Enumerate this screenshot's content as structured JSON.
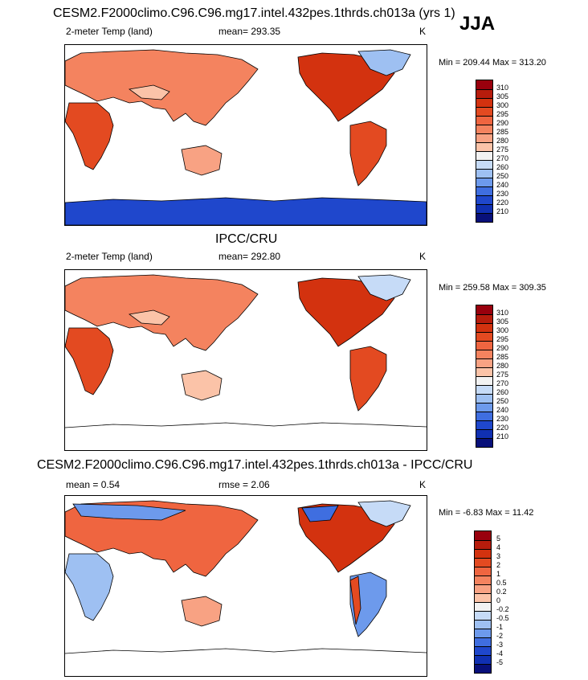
{
  "header": {
    "model_title": "CESM2.F2000climo.C96.C96.mg17.intel.432pes.1thrds.ch013a (yrs 1)",
    "season": "JJA"
  },
  "panel_model": {
    "variable": "2-meter Temp (land)",
    "stat": "mean= 293.35",
    "units": "K",
    "minmax": "Min = 209.44 Max = 313.20"
  },
  "panel_obs": {
    "title": "IPCC/CRU",
    "variable": "2-meter Temp (land)",
    "stat": "mean= 292.80",
    "units": "K",
    "minmax": "Min = 259.58 Max = 309.35"
  },
  "panel_diff": {
    "title": "CESM2.F2000climo.C96.C96.mg17.intel.432pes.1thrds.ch013a - IPCC/CRU",
    "mean": "mean =   0.54",
    "rmse": "rmse =   2.06",
    "units": "K",
    "minmax": "Min =  -6.83 Max =  11.42"
  },
  "colorbar_abs": {
    "labels": [
      "310",
      "305",
      "300",
      "295",
      "290",
      "285",
      "280",
      "275",
      "270",
      "260",
      "250",
      "240",
      "230",
      "220",
      "210"
    ],
    "colors": [
      "#99000d",
      "#b71c0c",
      "#d3320f",
      "#e34a21",
      "#ef6540",
      "#f4835f",
      "#f8a283",
      "#fbc3a8",
      "#f2f2f2",
      "#c6dbf7",
      "#9ec0f2",
      "#6d9aec",
      "#3f6ee0",
      "#1f47cc",
      "#1030b2",
      "#08107a"
    ]
  },
  "colorbar_diff": {
    "labels": [
      "5",
      "4",
      "3",
      "2",
      "1",
      "0.5",
      "0.2",
      "0",
      "-0.2",
      "-0.5",
      "-1",
      "-2",
      "-3",
      "-4",
      "-5"
    ],
    "colors": [
      "#99000d",
      "#b71c0c",
      "#d3320f",
      "#e34a21",
      "#ef6540",
      "#f4835f",
      "#f8a283",
      "#fbc3a8",
      "#f2f2f2",
      "#c6dbf7",
      "#9ec0f2",
      "#6d9aec",
      "#3f6ee0",
      "#1f47cc",
      "#1030b2",
      "#08107a"
    ]
  }
}
